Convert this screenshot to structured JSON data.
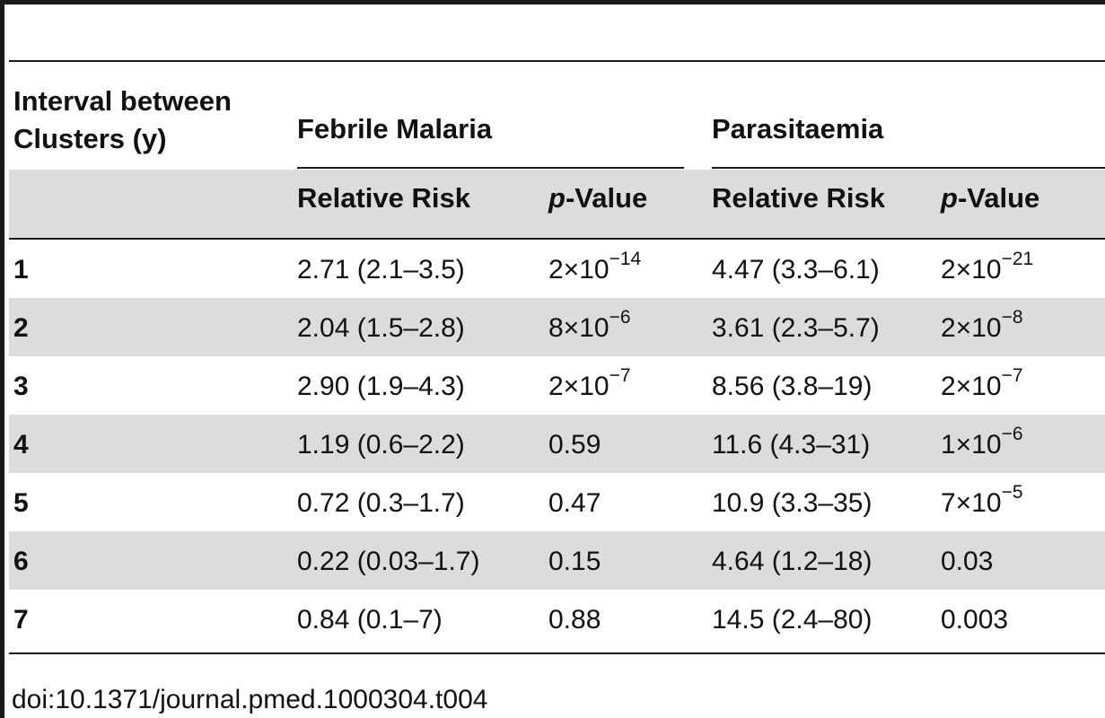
{
  "table": {
    "header": {
      "interval_label_line1": "Interval between",
      "interval_label_line2": "Clusters (y)",
      "group1": "Febrile Malaria",
      "group2": "Parasitaemia",
      "rr_label": "Relative Risk",
      "p_italic": "p",
      "p_suffix": "-Value"
    },
    "rows": [
      {
        "interval": "1",
        "fm_rr": "2.71 (2.1–3.5)",
        "fm_p_base": "2×10",
        "fm_p_exp": "−14",
        "pa_rr": "4.47 (3.3–6.1)",
        "pa_p_base": "2×10",
        "pa_p_exp": "−21"
      },
      {
        "interval": "2",
        "fm_rr": "2.04 (1.5–2.8)",
        "fm_p_base": "8×10",
        "fm_p_exp": "−6",
        "pa_rr": "3.61 (2.3–5.7)",
        "pa_p_base": "2×10",
        "pa_p_exp": "−8"
      },
      {
        "interval": "3",
        "fm_rr": "2.90 (1.9–4.3)",
        "fm_p_base": "2×10",
        "fm_p_exp": "−7",
        "pa_rr": "8.56 (3.8–19)",
        "pa_p_base": "2×10",
        "pa_p_exp": "−7"
      },
      {
        "interval": "4",
        "fm_rr": "1.19 (0.6–2.2)",
        "fm_p_base": "0.59",
        "fm_p_exp": "",
        "pa_rr": "11.6 (4.3–31)",
        "pa_p_base": "1×10",
        "pa_p_exp": "−6"
      },
      {
        "interval": "5",
        "fm_rr": "0.72 (0.3–1.7)",
        "fm_p_base": "0.47",
        "fm_p_exp": "",
        "pa_rr": "10.9 (3.3–35)",
        "pa_p_base": "7×10",
        "pa_p_exp": "−5"
      },
      {
        "interval": "6",
        "fm_rr": "0.22 (0.03–1.7)",
        "fm_p_base": "0.15",
        "fm_p_exp": "",
        "pa_rr": "4.64 (1.2–18)",
        "pa_p_base": "0.03",
        "pa_p_exp": ""
      },
      {
        "interval": "7",
        "fm_rr": "0.84 (0.1–7)",
        "fm_p_base": "0.88",
        "fm_p_exp": "",
        "pa_rr": "14.5 (2.4–80)",
        "pa_p_base": "0.003",
        "pa_p_exp": ""
      }
    ]
  },
  "doi": "doi:10.1371/journal.pmed.1000304.t004"
}
